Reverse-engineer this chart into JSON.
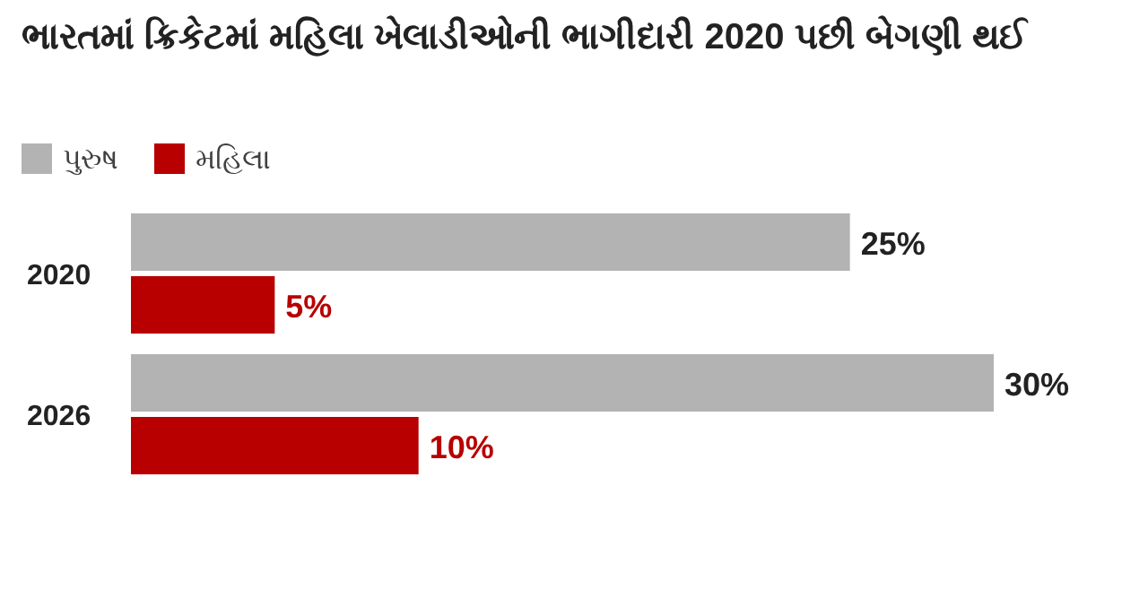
{
  "chart_data": {
    "type": "bar",
    "orientation": "horizontal",
    "title": "ભારતમાં ક્રિકેટમાં મહિલા ખેલાડીઓની ભાગીદારી 2020 પછી બેગણી થઈ",
    "categories": [
      "2020",
      "2026"
    ],
    "series": [
      {
        "name": "પુરુષ",
        "color": "#b3b3b3",
        "values": [
          25,
          30
        ],
        "value_labels": [
          "25%",
          "30%"
        ]
      },
      {
        "name": "મહિલા",
        "color": "#b80000",
        "values": [
          5,
          10
        ],
        "value_labels": [
          "5%",
          "10%"
        ]
      }
    ],
    "legend": "top left"
  }
}
